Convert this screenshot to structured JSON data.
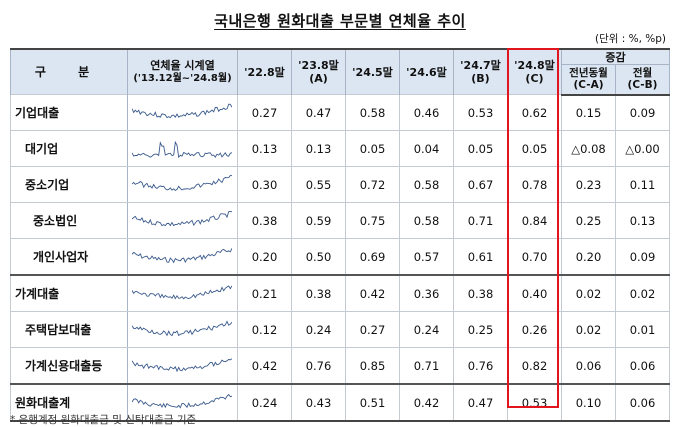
{
  "title": "국내은행 원화대출 부문별 연체율 추이",
  "unit": "(단위 : %, %p)",
  "header": {
    "gubun": "구 분",
    "sparkline_line1": "연체율 시계열",
    "sparkline_line2": "('13.12월~'24.8월)",
    "columns": [
      {
        "line1": "'22.8말",
        "line2": ""
      },
      {
        "line1": "'23.8말",
        "line2": "(A)"
      },
      {
        "line1": "'24.5말",
        "line2": ""
      },
      {
        "line1": "'24.6말",
        "line2": ""
      },
      {
        "line1": "'24.7말",
        "line2": "(B)"
      },
      {
        "line1": "'24.8말",
        "line2": "(C)"
      }
    ],
    "change_group": "증감",
    "change_columns": [
      {
        "line1": "전년동월",
        "line2": "(C-A)"
      },
      {
        "line1": "전월",
        "line2": "(C-B)"
      }
    ]
  },
  "rows": [
    {
      "label": "기업대출",
      "values": [
        "0.27",
        "0.47",
        "0.58",
        "0.46",
        "0.53",
        "0.62"
      ],
      "changes": [
        "0.15",
        "0.09"
      ]
    },
    {
      "label": "대기업",
      "values": [
        "0.13",
        "0.13",
        "0.05",
        "0.04",
        "0.05",
        "0.05"
      ],
      "changes": [
        "△0.08",
        "△0.00"
      ]
    },
    {
      "label": "중소기업",
      "values": [
        "0.30",
        "0.55",
        "0.72",
        "0.58",
        "0.67",
        "0.78"
      ],
      "changes": [
        "0.23",
        "0.11"
      ]
    },
    {
      "label": "중소법인",
      "values": [
        "0.38",
        "0.59",
        "0.75",
        "0.58",
        "0.71",
        "0.84"
      ],
      "changes": [
        "0.25",
        "0.13"
      ]
    },
    {
      "label": "개인사업자",
      "values": [
        "0.20",
        "0.50",
        "0.69",
        "0.57",
        "0.61",
        "0.70"
      ],
      "changes": [
        "0.20",
        "0.09"
      ]
    },
    {
      "label": "가계대출",
      "values": [
        "0.21",
        "0.38",
        "0.42",
        "0.36",
        "0.38",
        "0.40"
      ],
      "changes": [
        "0.02",
        "0.02"
      ]
    },
    {
      "label": "주택담보대출",
      "values": [
        "0.12",
        "0.24",
        "0.27",
        "0.24",
        "0.25",
        "0.26"
      ],
      "changes": [
        "0.02",
        "0.01"
      ]
    },
    {
      "label": "가계신용대출등",
      "values": [
        "0.42",
        "0.76",
        "0.85",
        "0.71",
        "0.76",
        "0.82"
      ],
      "changes": [
        "0.06",
        "0.06"
      ]
    },
    {
      "label": "원화대출계",
      "values": [
        "0.24",
        "0.43",
        "0.51",
        "0.42",
        "0.47",
        "0.53"
      ],
      "changes": [
        "0.10",
        "0.06"
      ]
    }
  ],
  "footnote": "* 은행계정 원화대출금 및 신탁대출금 기준",
  "colors": {
    "header_bg": "#dce6f2",
    "highlight_border": "#e2141e",
    "sparkline": "#3a5a8c"
  }
}
